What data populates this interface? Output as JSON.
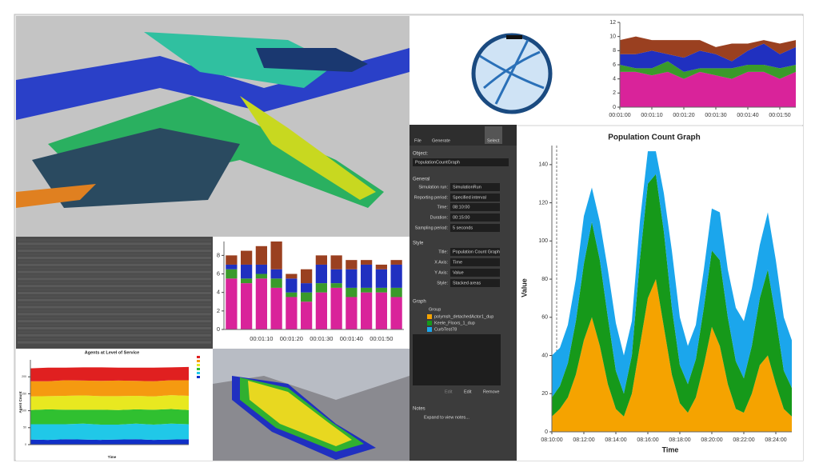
{
  "panel": {
    "toolbar": [
      "File",
      "Generate",
      "Select"
    ],
    "object_label": "Object:",
    "object": "PopulationCountGraph",
    "general": "General",
    "fields": [
      {
        "label": "Simulation run:",
        "value": "SimulationRun"
      },
      {
        "label": "Reporting period:",
        "value": "Specified interval"
      },
      {
        "label": "Time:",
        "value": "08:10:00"
      },
      {
        "label": "Duration:",
        "value": "00:15:00"
      },
      {
        "label": "Sampling period:",
        "value": "5 seconds"
      }
    ],
    "style": "Style",
    "style_fields": [
      {
        "label": "Title:",
        "value": "Population Count Graph"
      },
      {
        "label": "X Axis:",
        "value": "Time"
      },
      {
        "label": "Y Axis:",
        "value": "Value"
      },
      {
        "label": "Style:",
        "value": "Stacked areas"
      }
    ],
    "graph": "Graph",
    "group": "Group",
    "buttons": [
      "Edit",
      "Edit",
      "Remove"
    ],
    "notes": "Notes",
    "notes_expand": "Expand to view notes..."
  },
  "chart_data": [
    {
      "type": "area",
      "stacked": true,
      "title": "Population Count Graph",
      "x_label": "Time",
      "y_label": "Value",
      "x": [
        "08:10:00",
        "08:10:30",
        "08:11:00",
        "08:11:30",
        "08:12:00",
        "08:12:30",
        "08:13:00",
        "08:13:30",
        "08:14:00",
        "08:14:30",
        "08:15:00",
        "08:15:30",
        "08:16:00",
        "08:16:30",
        "08:17:00",
        "08:17:30",
        "08:18:00",
        "08:18:30",
        "08:19:00",
        "08:19:30",
        "08:20:00",
        "08:20:30",
        "08:21:00",
        "08:21:30",
        "08:22:00",
        "08:22:30",
        "08:23:00",
        "08:23:30",
        "08:24:00",
        "08:24:30",
        "08:25:00"
      ],
      "xticks": [
        "08:10:00",
        "08:12:00",
        "08:14:00",
        "08:16:00",
        "08:18:00",
        "08:20:00",
        "08:22:00",
        "08:24:00"
      ],
      "ylim": [
        0,
        150
      ],
      "yticks": [
        0,
        20,
        40,
        60,
        80,
        100,
        120,
        140
      ],
      "grid": false,
      "series": [
        {
          "name": "polymsh_detachedActor1_dup",
          "color": "#f5a300",
          "values": [
            8,
            12,
            18,
            30,
            48,
            60,
            45,
            25,
            12,
            8,
            20,
            45,
            70,
            80,
            55,
            30,
            15,
            10,
            18,
            35,
            55,
            45,
            25,
            12,
            10,
            20,
            35,
            40,
            25,
            12,
            8
          ]
        },
        {
          "name": "Keele_Floors_1_dup",
          "color": "#16991a",
          "values": [
            10,
            12,
            18,
            28,
            40,
            50,
            45,
            35,
            20,
            12,
            20,
            45,
            60,
            55,
            50,
            35,
            20,
            15,
            20,
            30,
            40,
            45,
            35,
            25,
            18,
            25,
            35,
            45,
            35,
            20,
            15
          ]
        },
        {
          "name": "CurbTest78",
          "color": "#1ba6ec",
          "values": [
            22,
            20,
            20,
            22,
            25,
            18,
            20,
            25,
            25,
            20,
            18,
            20,
            17,
            12,
            20,
            30,
            25,
            20,
            18,
            20,
            22,
            25,
            25,
            28,
            30,
            30,
            28,
            30,
            30,
            28,
            25
          ]
        }
      ]
    },
    {
      "type": "area",
      "stacked": true,
      "x": [
        "00:01:00",
        "00:01:05",
        "00:01:10",
        "00:01:15",
        "00:01:20",
        "00:01:25",
        "00:01:30",
        "00:01:35",
        "00:01:40",
        "00:01:45",
        "00:01:50",
        "00:01:55"
      ],
      "xticks": [
        "00:01:00",
        "00:01:10",
        "00:01:20",
        "00:01:30",
        "00:01:40",
        "00:01:50"
      ],
      "ylim": [
        0,
        12
      ],
      "yticks": [
        0,
        2,
        4,
        6,
        8,
        10,
        12
      ],
      "grid": false,
      "series": [
        {
          "color": "#d9239a",
          "values": [
            5,
            5,
            4.5,
            5,
            4,
            5,
            4.5,
            4,
            5,
            5,
            4,
            5
          ]
        },
        {
          "color": "#3a9a2a",
          "values": [
            1,
            0.5,
            1,
            1.5,
            1,
            0.5,
            1,
            1.5,
            1,
            1,
            1.5,
            1
          ]
        },
        {
          "color": "#2030c0",
          "values": [
            1.5,
            2,
            2.5,
            1,
            2,
            2.5,
            2,
            1,
            2,
            3,
            2,
            2.5
          ]
        },
        {
          "color": "#9a4020",
          "values": [
            2,
            2.5,
            1.5,
            2,
            2.5,
            1.5,
            1,
            2.5,
            1,
            0.5,
            1.5,
            1
          ]
        }
      ]
    },
    {
      "type": "bar",
      "stacked": true,
      "categories": [
        null,
        null,
        "00:01:10",
        null,
        "00:01:20",
        null,
        "00:01:30",
        null,
        "00:01:40",
        null,
        "00:01:50",
        null
      ],
      "ylim": [
        0,
        9.5
      ],
      "yticks": [
        0,
        2,
        4,
        6,
        8
      ],
      "grid": false,
      "series": [
        {
          "color": "#d9239a",
          "values": [
            5.5,
            5,
            5.5,
            4.5,
            3.5,
            3,
            4,
            4.5,
            3.5,
            4,
            4,
            3.5
          ]
        },
        {
          "color": "#3a9a2a",
          "values": [
            1,
            0.5,
            0.5,
            1,
            0.5,
            1,
            1,
            0.5,
            1,
            0.5,
            0.5,
            1
          ]
        },
        {
          "color": "#2030c0",
          "values": [
            0.5,
            1.5,
            1,
            1,
            1.5,
            1,
            2,
            1.5,
            2,
            2.5,
            2,
            2.5
          ]
        },
        {
          "color": "#9a4020",
          "values": [
            1,
            1.5,
            2,
            3,
            0.5,
            1.5,
            1,
            1.5,
            1,
            0.5,
            0.5,
            0.5
          ]
        }
      ]
    },
    {
      "type": "area",
      "stacked": true,
      "title": "Agents at Level of Service",
      "x_label": "Time",
      "y_label": "Agent Count",
      "ylim": [
        0,
        250
      ],
      "yticks": [
        0,
        50,
        100,
        150,
        200
      ],
      "grid": false,
      "series": [
        {
          "color": "#1030c8",
          "values": [
            15,
            14,
            16,
            15,
            14,
            15,
            16,
            14,
            15,
            16
          ]
        },
        {
          "color": "#20c8e8",
          "values": [
            45,
            46,
            44,
            47,
            45,
            44,
            46,
            45,
            47,
            44
          ]
        },
        {
          "color": "#30c030",
          "values": [
            42,
            44,
            43,
            41,
            44,
            43,
            42,
            44,
            43,
            42
          ]
        },
        {
          "color": "#e8e820",
          "values": [
            40,
            39,
            41,
            42,
            40,
            41,
            40,
            39,
            41,
            42
          ]
        },
        {
          "color": "#f59a10",
          "values": [
            45,
            44,
            46,
            44,
            45,
            46,
            44,
            45,
            44,
            46
          ]
        },
        {
          "color": "#e02020",
          "values": [
            38,
            40,
            37,
            39,
            40,
            38,
            39,
            40,
            38,
            39
          ]
        }
      ]
    }
  ]
}
